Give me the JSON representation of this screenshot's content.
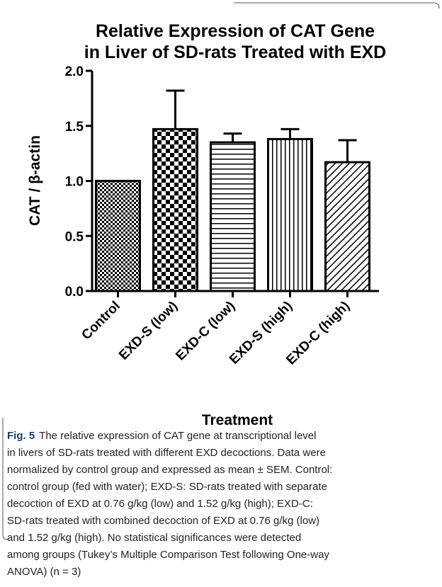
{
  "chart_data": {
    "type": "bar",
    "title": [
      "Relative Expression of CAT Gene",
      "in Liver of SD-rats Treated with EXD"
    ],
    "x_label": "Treatment",
    "y_label": "CAT / β-actin",
    "categories": [
      "Control",
      "EXD-S (low)",
      "EXD-C (low)",
      "EXD-S (high)",
      "EXD-C (high)"
    ],
    "values": [
      1.0,
      1.47,
      1.35,
      1.38,
      1.17
    ],
    "errors": [
      0,
      0.35,
      0.08,
      0.09,
      0.2
    ],
    "fill_patterns": [
      "fine-check",
      "check",
      "horizontal",
      "vertical",
      "diagonal"
    ],
    "color": "#000000",
    "ylim": [
      0,
      2
    ],
    "yticks": [
      {
        "value": 0,
        "label": "0.0"
      },
      0.5,
      {
        "value": 1,
        "label": "1.0"
      },
      1.5,
      {
        "value": 2,
        "label": "2.0"
      }
    ],
    "grid": false
  },
  "caption": {
    "label": "Fig. 5",
    "lines": [
      "The relative expression of CAT gene at transcriptional level",
      "in livers of SD-rats treated with different EXD decoctions. Data were",
      "normalized by control group and expressed as mean ± SEM. Control:",
      "control group (fed with water); EXD-S: SD-rats treated with separate",
      "decoction of EXD at 0.76 g/kg (low) and 1.52 g/kg (high); EXD-C:",
      "SD-rats treated with combined decoction of EXD at 0.76 g/kg (low)",
      "and 1.52 g/kg (high). No statistical significances were detected",
      "among groups (Tukey’s Multiple Comparison Test following One-way",
      "ANOVA) (n = 3)"
    ]
  }
}
